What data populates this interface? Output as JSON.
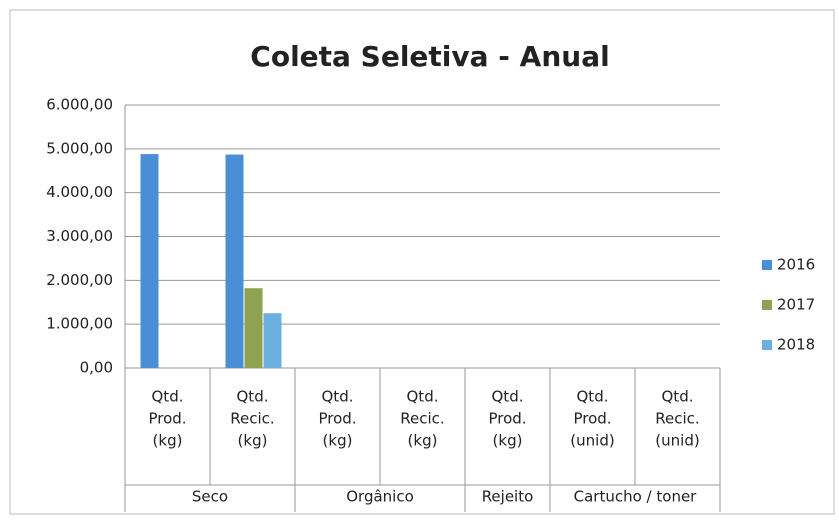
{
  "chart_data": {
    "type": "bar",
    "title": "Coleta Seletiva - Anual",
    "groups": [
      {
        "name": "Seco",
        "categories": [
          [
            "Qtd.",
            "Prod.",
            "(kg)"
          ],
          [
            "Qtd.",
            "Recic.",
            "(kg)"
          ]
        ]
      },
      {
        "name": "Orgânico",
        "categories": [
          [
            "Qtd.",
            "Prod.",
            "(kg)"
          ],
          [
            "Qtd.",
            "Recic.",
            "(kg)"
          ]
        ]
      },
      {
        "name": "Rejeito",
        "categories": [
          [
            "Qtd.",
            "Prod.",
            "(kg)"
          ]
        ]
      },
      {
        "name": "Cartucho / toner",
        "categories": [
          [
            "Qtd.",
            "Prod.",
            "(unid)"
          ],
          [
            "Qtd.",
            "Recic.",
            "(unid)"
          ]
        ]
      }
    ],
    "series": [
      {
        "name": "2016",
        "color": "#4a8fd6",
        "values": [
          4880,
          4870,
          null,
          null,
          null,
          null,
          null
        ]
      },
      {
        "name": "2017",
        "color": "#8ea24f",
        "values": [
          null,
          1820,
          null,
          null,
          null,
          null,
          null
        ]
      },
      {
        "name": "2018",
        "color": "#6cb0e2",
        "values": [
          null,
          1250,
          null,
          null,
          null,
          null,
          null
        ]
      }
    ],
    "ylim": [
      0,
      6000
    ],
    "yticks": [
      {
        "value": 0,
        "label": "0,00"
      },
      {
        "value": 1000,
        "label": "1.000,00"
      },
      {
        "value": 2000,
        "label": "2.000,00"
      },
      {
        "value": 3000,
        "label": "3.000,00"
      },
      {
        "value": 4000,
        "label": "4.000,00"
      },
      {
        "value": 5000,
        "label": "5.000,00"
      },
      {
        "value": 6000,
        "label": "6.000,00"
      }
    ],
    "grid": true,
    "legend": "right"
  }
}
